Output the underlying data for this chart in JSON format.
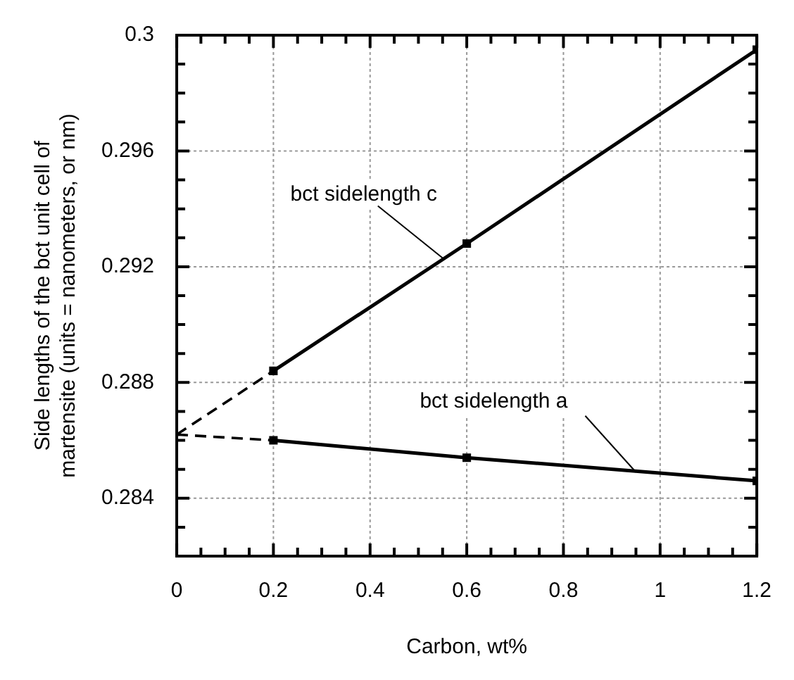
{
  "chart_data": {
    "type": "line",
    "xlabel": "Carbon, wt%",
    "ylabel": "Side lengths of the bct unit cell of martensite (units = nanometers, or nm)",
    "xlim": [
      0,
      1.2
    ],
    "ylim": [
      0.282,
      0.3
    ],
    "xticks": [
      0,
      {
        "value": 0.05,
        "label": null
      },
      {
        "value": 0.1,
        "label": null
      },
      {
        "value": 0.15,
        "label": null
      },
      0.2,
      {
        "value": 0.25,
        "label": null
      },
      {
        "value": 0.3,
        "label": null
      },
      {
        "value": 0.35,
        "label": null
      },
      0.4,
      {
        "value": 0.45,
        "label": null
      },
      {
        "value": 0.5,
        "label": null
      },
      {
        "value": 0.55,
        "label": null
      },
      0.6,
      {
        "value": 0.65,
        "label": null
      },
      {
        "value": 0.7,
        "label": null
      },
      {
        "value": 0.75,
        "label": null
      },
      0.8,
      {
        "value": 0.85,
        "label": null
      },
      {
        "value": 0.9,
        "label": null
      },
      {
        "value": 0.95,
        "label": null
      },
      1,
      {
        "value": 1.05,
        "label": null
      },
      {
        "value": 1.1,
        "label": null
      },
      {
        "value": 1.15,
        "label": null
      },
      1.2
    ],
    "yticks": [
      {
        "value": 0.282,
        "label": null
      },
      {
        "value": 0.283,
        "label": null
      },
      0.284,
      {
        "value": 0.285,
        "label": null
      },
      {
        "value": 0.286,
        "label": null
      },
      {
        "value": 0.287,
        "label": null
      },
      0.288,
      {
        "value": 0.289,
        "label": null
      },
      {
        "value": 0.29,
        "label": null
      },
      {
        "value": 0.291,
        "label": null
      },
      0.292,
      {
        "value": 0.293,
        "label": null
      },
      {
        "value": 0.294,
        "label": null
      },
      {
        "value": 0.295,
        "label": null
      },
      0.296,
      {
        "value": 0.297,
        "label": null
      },
      {
        "value": 0.298,
        "label": null
      },
      {
        "value": 0.299,
        "label": null
      },
      0.3
    ],
    "grid": true,
    "legend": false,
    "series": [
      {
        "x": [
          0.2,
          0.6,
          1.2
        ],
        "values": [
          0.2884,
          0.2928,
          0.2995
        ],
        "color": "#000000",
        "marker": "square",
        "line_style": "solid"
      },
      {
        "x": [
          0,
          0.2
        ],
        "values": [
          0.2862,
          0.2884
        ],
        "color": "#000000",
        "marker": "none",
        "line_style": "dashed"
      },
      {
        "x": [
          0.2,
          0.6,
          1.2
        ],
        "values": [
          0.286,
          0.2854,
          0.2846
        ],
        "color": "#000000",
        "marker": "square",
        "line_style": "solid"
      },
      {
        "x": [
          0,
          0.2
        ],
        "values": [
          0.2862,
          0.286
        ],
        "color": "#000000",
        "marker": "none",
        "line_style": "dashed"
      }
    ],
    "annotations": [
      {
        "text": "bct sidelength c",
        "x": 0.55,
        "y": 0.2923
      },
      {
        "text": "bct sidelength a",
        "x": 0.95,
        "y": 0.2849
      }
    ]
  }
}
